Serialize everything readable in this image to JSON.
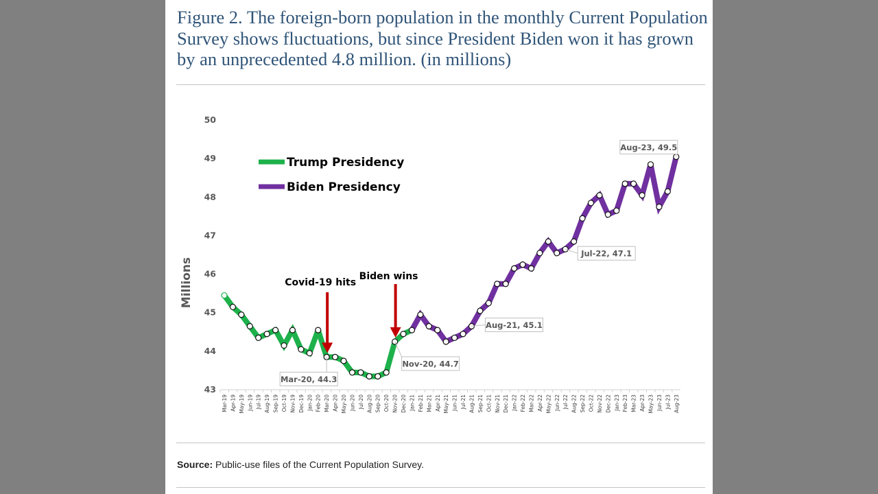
{
  "figure": {
    "title": "Figure 2. The foreign-born population in the monthly Current Population Survey shows fluctuations, but since President Biden won it has grown by an unprecedented 4.8 million. (in millions)",
    "source_label": "Source:",
    "source_text": " Public-use files of the Current Population Survey."
  },
  "chart_data": {
    "type": "line",
    "title": "",
    "xlabel": "",
    "ylabel": "Millions",
    "ylim": [
      43,
      50
    ],
    "yticks": [
      43,
      44,
      45,
      46,
      47,
      48,
      49,
      50
    ],
    "grid": false,
    "legend_position": "top-left",
    "x": [
      "Mar-19",
      "Apr-19",
      "May-19",
      "Jun-19",
      "Jul-19",
      "Aug-19",
      "Sep-19",
      "Oct-19",
      "Nov-19",
      "Dec-19",
      "Jan-20",
      "Feb-20",
      "Mar-20",
      "Apr-20",
      "May-20",
      "Jun-20",
      "Jul-20",
      "Aug-20",
      "Sep-20",
      "Oct-20",
      "Nov-20",
      "Dec-20",
      "Jan-21",
      "Feb-21",
      "Mar-21",
      "Apr-21",
      "May-21",
      "Jun-21",
      "Jul-21",
      "Aug-21",
      "Sep-21",
      "Oct-21",
      "Nov-21",
      "Dec-21",
      "Jan-22",
      "Feb-22",
      "Mar-22",
      "Apr-22",
      "May-22",
      "Jun-22",
      "Jul-22",
      "Aug-22",
      "Sep-22",
      "Oct-22",
      "Nov-22",
      "Dec-22",
      "Jan-23",
      "Feb-23",
      "Mar-23",
      "Apr-23",
      "May-23",
      "Jun-23",
      "Jul-23",
      "Aug-23"
    ],
    "values": [
      45.9,
      45.6,
      45.4,
      45.1,
      44.8,
      44.9,
      45.0,
      44.6,
      45.0,
      44.5,
      44.4,
      45.0,
      44.3,
      44.3,
      44.2,
      43.9,
      43.9,
      43.8,
      43.8,
      43.9,
      44.7,
      44.9,
      45.0,
      45.4,
      45.1,
      45.0,
      44.7,
      44.8,
      44.9,
      45.1,
      45.5,
      45.7,
      46.2,
      46.2,
      46.6,
      46.7,
      46.6,
      47.0,
      47.3,
      47.0,
      47.1,
      47.3,
      47.9,
      48.3,
      48.5,
      48.0,
      48.1,
      48.8,
      48.8,
      48.5,
      49.3,
      48.2,
      48.6,
      49.5
    ],
    "series": [
      {
        "name": "Trump Presidency",
        "color": "#1db14b",
        "from": "Mar-19",
        "to": "Jan-21"
      },
      {
        "name": "Biden Presidency",
        "color": "#7030a0",
        "from": "Jan-21",
        "to": "Aug-23"
      }
    ],
    "annotations": [
      {
        "text": "Covid-19 hits",
        "at": "Mar-20",
        "type": "arrow",
        "color": "#c00000"
      },
      {
        "text": "Biden wins",
        "at": "Nov-20",
        "type": "arrow",
        "color": "#c00000"
      }
    ],
    "data_labels": [
      {
        "at": "Mar-20",
        "text": "Mar-20,  44.3"
      },
      {
        "at": "Nov-20",
        "text": "Nov-20,  44.7"
      },
      {
        "at": "Aug-21",
        "text": "Aug-21,  45.1"
      },
      {
        "at": "Jul-22",
        "text": "Jul-22,  47.1"
      },
      {
        "at": "Aug-23",
        "text": "Aug-23,  49.5"
      }
    ]
  }
}
